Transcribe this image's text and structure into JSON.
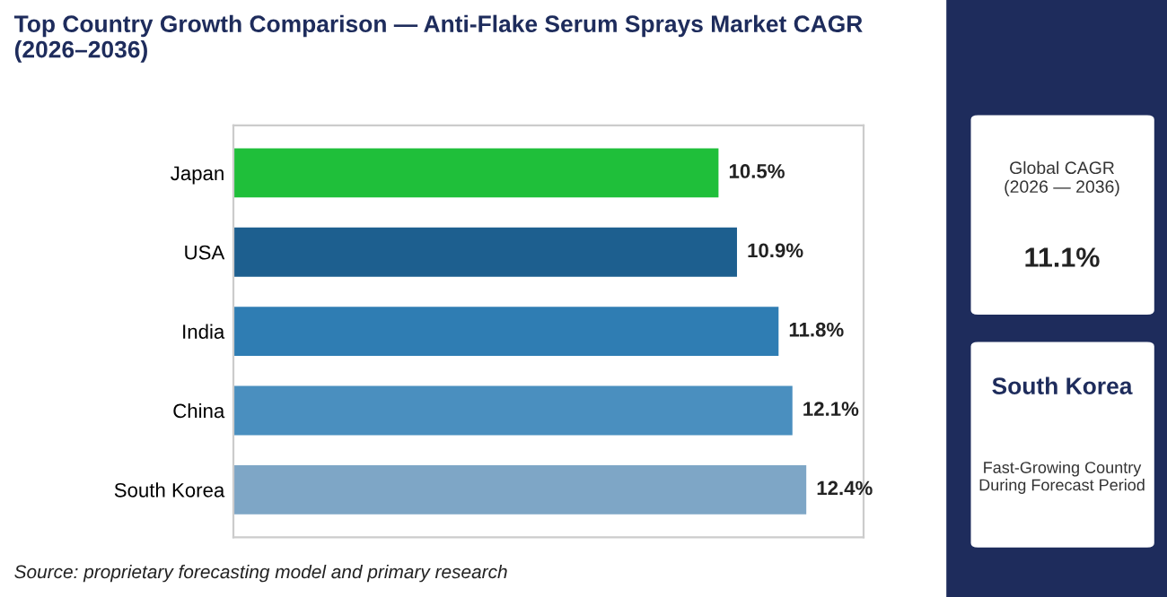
{
  "chart_data": {
    "type": "bar",
    "orientation": "horizontal",
    "title": "Top Country Growth Comparison — Anti-Flake Serum Sprays Market CAGR\n(2026–2036)",
    "categories": [
      "Japan",
      "USA",
      "India",
      "China",
      "South Korea"
    ],
    "values": [
      10.5,
      10.9,
      11.8,
      12.1,
      12.4
    ],
    "colors": [
      "#1fbf3a",
      "#1d5f8f",
      "#2f7db3",
      "#4a8fbf",
      "#7ea6c6"
    ],
    "value_labels": [
      "10.5%",
      "10.9%",
      "11.8%",
      "12.1%",
      "12.4%"
    ],
    "tick_labels": "y",
    "grid": false,
    "legend": false,
    "annotations": [
      "Source: proprietary forecasting model and primary research",
      "Global CAGR\n(2026 — 2036)",
      "11.1%",
      "South Korea",
      "Fast-Growing Country\nDuring Forecast Period"
    ]
  }
}
